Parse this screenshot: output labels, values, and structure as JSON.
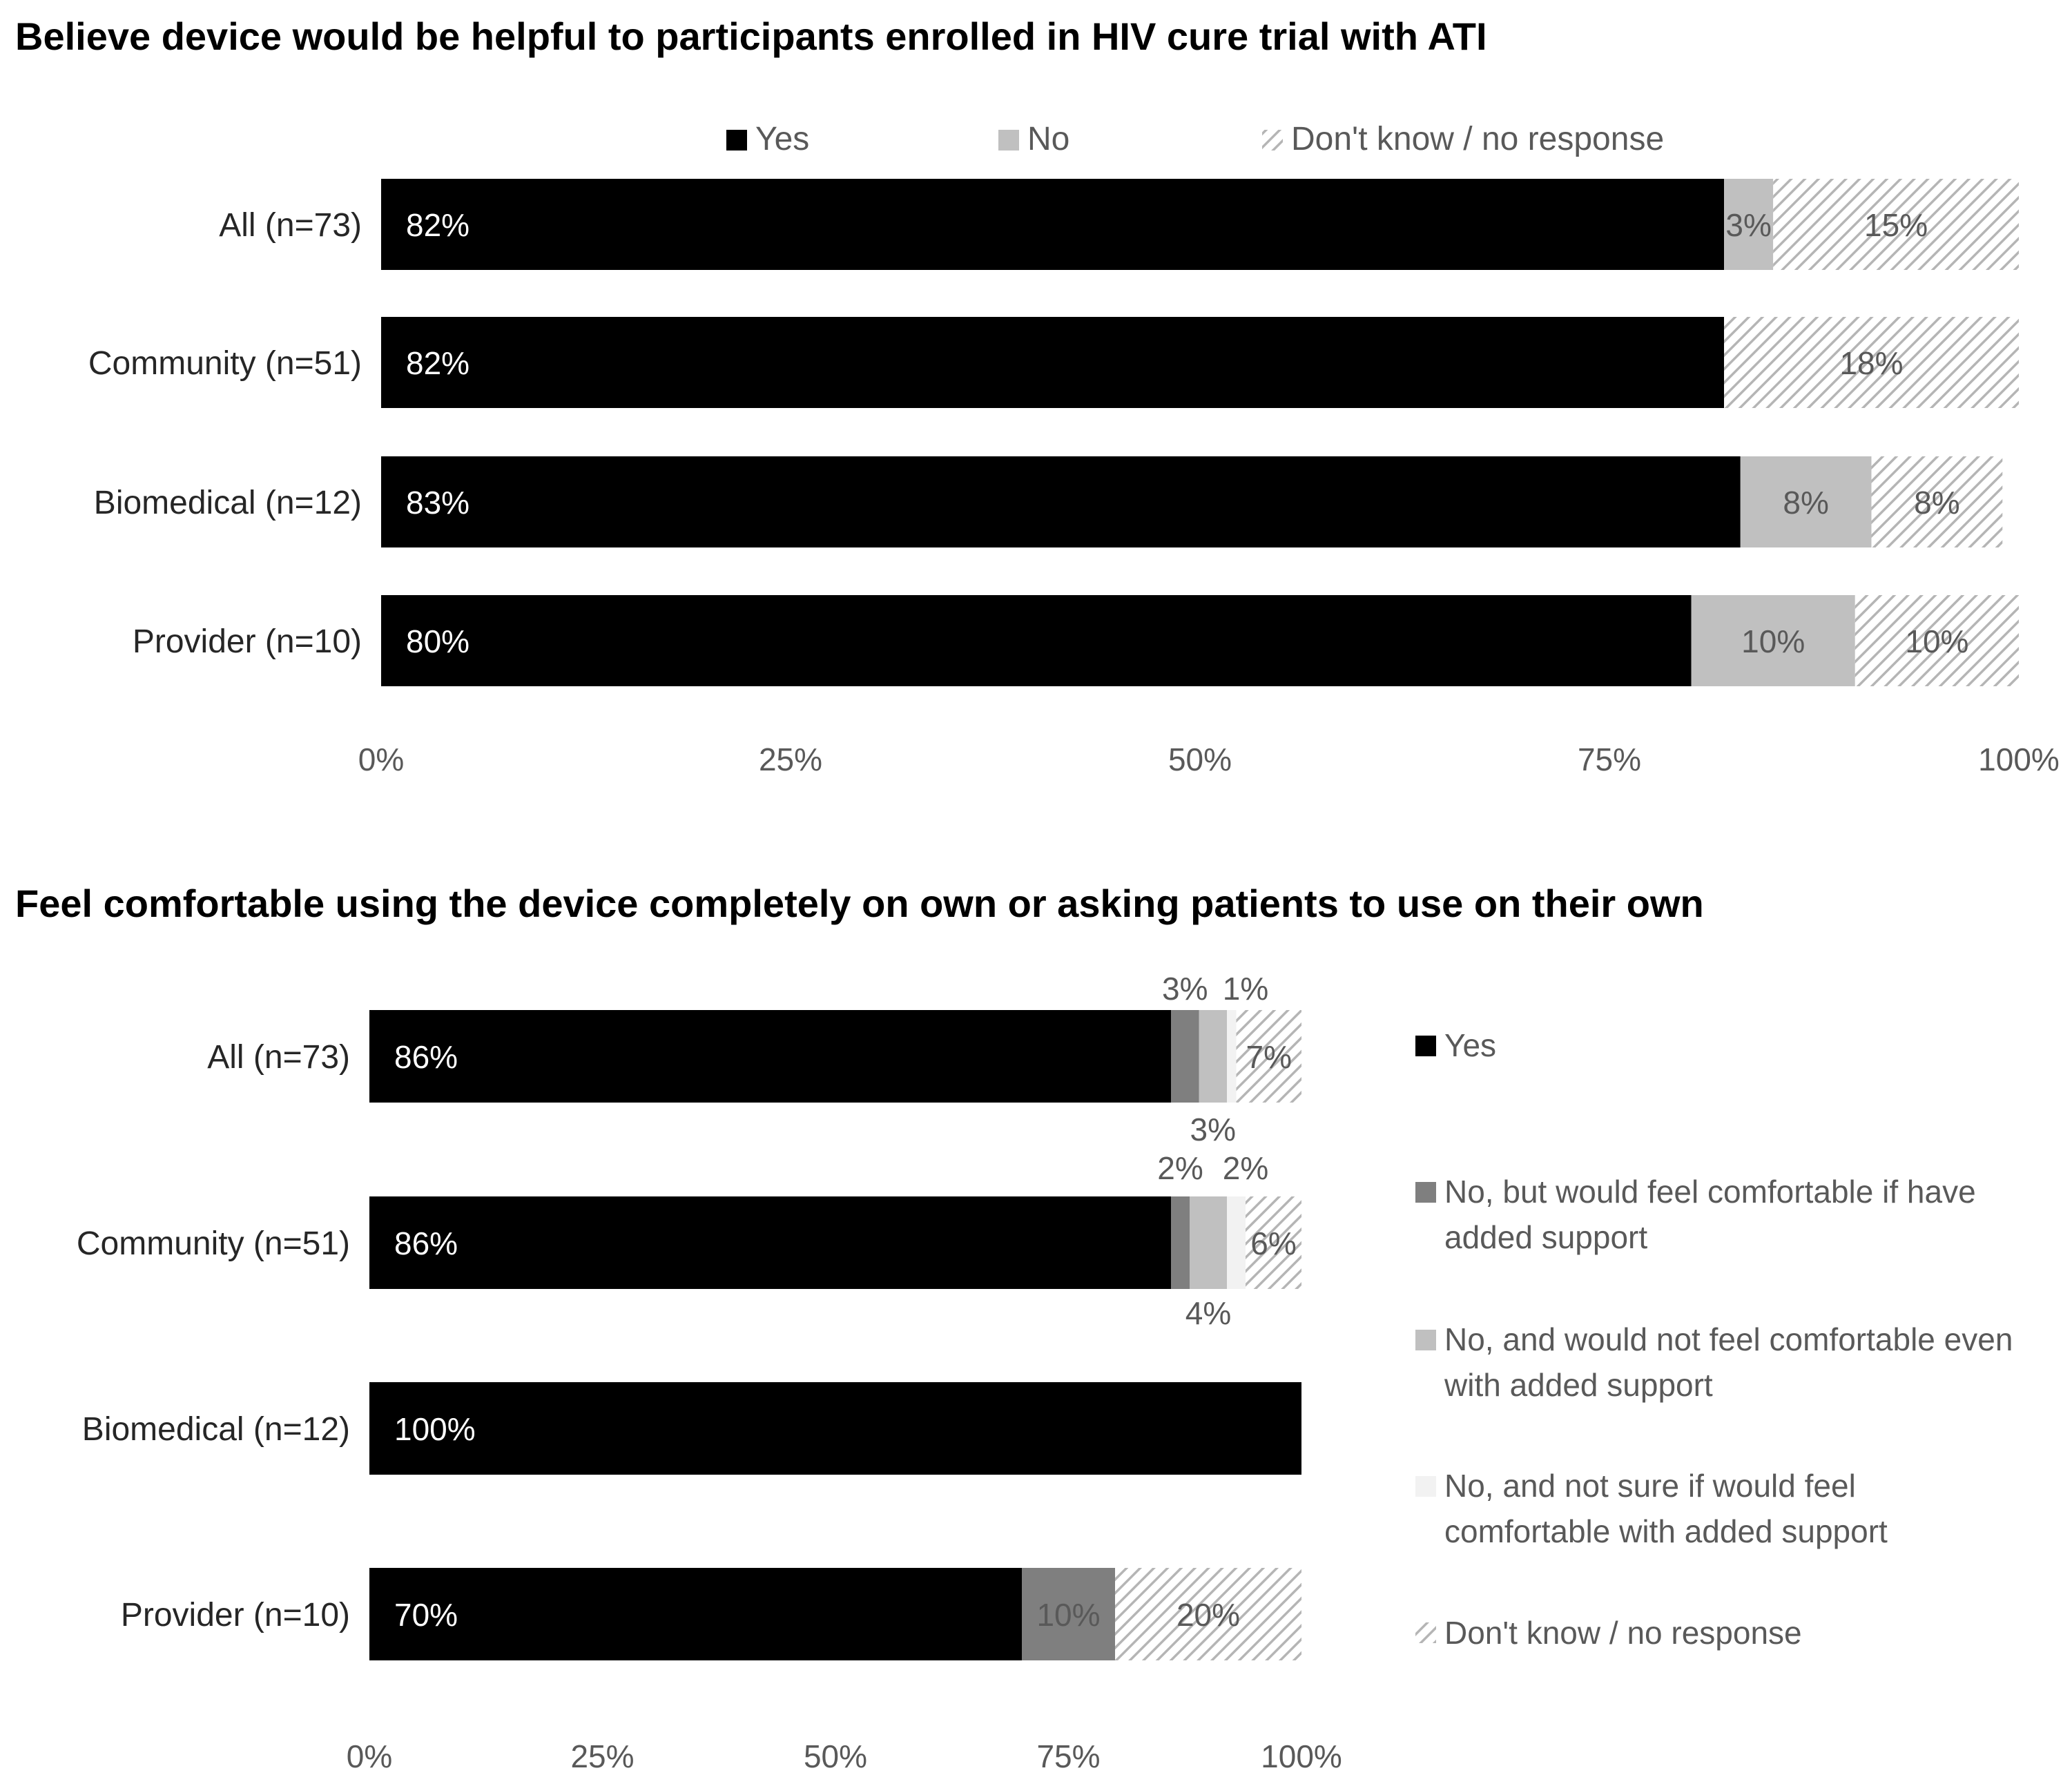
{
  "chart_data": [
    {
      "type": "bar",
      "orientation": "horizontal",
      "stacked": true,
      "title": "Believe device would be helpful to participants enrolled in HIV cure trial with ATI",
      "categories": [
        "All (n=73)",
        "Community (n=51)",
        "Biomedical (n=12)",
        "Provider (n=10)"
      ],
      "series": [
        {
          "name": "Yes",
          "color": "#000000",
          "values": [
            82,
            82,
            83,
            80
          ],
          "labels": [
            "82%",
            "82%",
            "83%",
            "80%"
          ]
        },
        {
          "name": "No",
          "color": "#c0c0c0",
          "values": [
            3,
            0,
            8,
            10
          ],
          "labels": [
            "3%",
            "",
            "8%",
            "10%"
          ]
        },
        {
          "name": "Don't know / no response",
          "color": "hatch",
          "values": [
            15,
            18,
            8,
            10
          ],
          "labels": [
            "15%",
            "18%",
            "8%",
            "10%"
          ]
        }
      ],
      "xlim": [
        0,
        100
      ],
      "xticks": [
        "0%",
        "25%",
        "50%",
        "75%",
        "100%"
      ],
      "legend_position": "top"
    },
    {
      "type": "bar",
      "orientation": "horizontal",
      "stacked": true,
      "title": "Feel comfortable using the device completely on own or asking patients to use on their own",
      "categories": [
        "All (n=73)",
        "Community (n=51)",
        "Biomedical (n=12)",
        "Provider (n=10)"
      ],
      "series": [
        {
          "name": "Yes",
          "color": "#000000",
          "values": [
            86,
            86,
            100,
            70
          ],
          "labels": [
            "86%",
            "86%",
            "100%",
            "70%"
          ]
        },
        {
          "name": "No, but would feel comfortable if have added support",
          "color": "#7f7f7f",
          "values": [
            3,
            2,
            0,
            10
          ],
          "labels": [
            "3%",
            "2%",
            "",
            "10%"
          ]
        },
        {
          "name": "No, and would not feel comfortable even with added support",
          "color": "#c0c0c0",
          "values": [
            3,
            4,
            0,
            0
          ],
          "labels": [
            "3%",
            "4%",
            "",
            ""
          ]
        },
        {
          "name": "No, and not sure if would feel comfortable with added support",
          "color": "#f2f2f2",
          "values": [
            1,
            2,
            0,
            0
          ],
          "labels": [
            "1%",
            "2%",
            "",
            ""
          ]
        },
        {
          "name": "Don't know / no response",
          "color": "hatch",
          "values": [
            7,
            6,
            0,
            20
          ],
          "labels": [
            "7%",
            "6%",
            "",
            "20%"
          ]
        }
      ],
      "xlim": [
        0,
        100
      ],
      "xticks": [
        "0%",
        "25%",
        "50%",
        "75%",
        "100%"
      ],
      "legend_position": "right"
    }
  ]
}
